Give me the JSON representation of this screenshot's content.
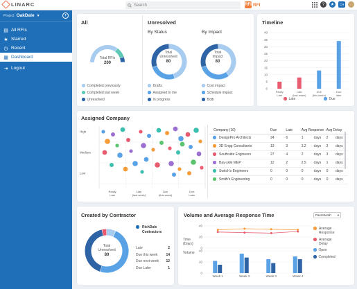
{
  "app": {
    "brand": "LINARC",
    "search_placeholder": "Search",
    "module_label": "RFI",
    "module_badge": "RFI",
    "grid_icon": "grid-icon",
    "help_label": "?",
    "avatar_text": "CH"
  },
  "sidebar": {
    "project_label": "Project",
    "project_name": "OakDale",
    "items": [
      {
        "label": "All RFIs",
        "icon": "inbox-icon",
        "glyph": "▤"
      },
      {
        "label": "Starred",
        "icon": "star-icon",
        "glyph": "★"
      },
      {
        "label": "Recent",
        "icon": "clock-icon",
        "glyph": "◷"
      },
      {
        "label": "Dashboard",
        "icon": "dashboard-icon",
        "glyph": "▦",
        "active": true
      },
      {
        "label": "Logout",
        "icon": "logout-icon",
        "glyph": "⇥"
      }
    ]
  },
  "colors": {
    "accent": "#1f6fb8",
    "light_blue": "#a8ccf0",
    "mid_blue": "#5aa2e6",
    "dark_blue": "#2e63a6",
    "red": "#e85c6f",
    "orange": "#f59c3a",
    "teal": "#3dbfb0",
    "purple": "#9b6fd0",
    "green": "#5cc46f"
  },
  "all_card": {
    "title": "All",
    "total_label": "Total RFIs",
    "total_value": "200",
    "legend": [
      "Completed previously",
      "Completed last week",
      "Unresolved"
    ]
  },
  "unresolved_card": {
    "title": "Unresolved",
    "by_status": {
      "title": "By Status",
      "center_label_1": "Total",
      "center_label_2": "Unresolved",
      "center_value": "80",
      "legend": [
        "Drafts",
        "Assigned to me",
        "In progress"
      ]
    },
    "by_impact": {
      "title": "By Impact",
      "center_label_1": "Total",
      "center_label_2": "Impact",
      "center_value": "80",
      "legend": [
        "Cost impact",
        "Schedule impact",
        "Both"
      ]
    }
  },
  "timeline_card": {
    "title": "Timeline",
    "legend": [
      "Late",
      "Due"
    ]
  },
  "assigned_card": {
    "title": "Assigned Company",
    "y_labels": [
      "High",
      "Medium",
      "Low"
    ],
    "x_labels": [
      [
        "Really",
        "Late"
      ],
      [
        "Late",
        "(last week)"
      ],
      [
        "Due",
        "(this week)"
      ],
      [
        "Due",
        "Later"
      ]
    ],
    "table": {
      "headers": [
        "Company (10)",
        "Due",
        "Late",
        "Avg Response",
        "Avg Delay"
      ],
      "rows": [
        {
          "color": "#5aa2e6",
          "cells": [
            "DesignPro Architects",
            "24",
            "6",
            "1",
            "days",
            "2",
            "days"
          ]
        },
        {
          "color": "#f59c3a",
          "cells": [
            "3D Engg Consultants",
            "13",
            "3",
            "3.2",
            "days",
            "3",
            "days"
          ]
        },
        {
          "color": "#e85c6f",
          "cells": [
            "Southside Engineers",
            "27",
            "4",
            "2",
            "days",
            "3",
            "days"
          ]
        },
        {
          "color": "#9b6fd0",
          "cells": [
            "Bay-side MEP",
            "12",
            "2",
            "2.5",
            "days",
            "1",
            "days"
          ]
        },
        {
          "color": "#3dbfb0",
          "cells": [
            "Switch's Engineers",
            "0",
            "0",
            "0",
            "days",
            "0",
            "days"
          ]
        },
        {
          "color": "#5cc46f",
          "cells": [
            "Smith's Engineering",
            "0",
            "0",
            "0",
            "days",
            "0",
            "days"
          ]
        }
      ]
    }
  },
  "contractor_card": {
    "title": "Created by Contractor",
    "center_label_1": "Total",
    "center_label_2": "Unresolved",
    "center_value": "80",
    "contractor_name": "RichDale Contractors",
    "stats": [
      {
        "label": "Late",
        "value": "2"
      },
      {
        "label": "Due this week",
        "value": "14"
      },
      {
        "label": "Due next week",
        "value": "12"
      },
      {
        "label": "Due Later",
        "value": "1"
      }
    ]
  },
  "volume_card": {
    "title": "Volume and Average Response Time",
    "period_select": "Past Month",
    "y_top_label_1": "Time",
    "y_top_label_2": "(Days)",
    "y_bottom_label": "Volume",
    "y_top_ticks": [
      "40",
      "20",
      "0"
    ],
    "y_bottom_ticks": [
      "40",
      "20",
      "0"
    ],
    "weeks": [
      "Week 1",
      "Week 2",
      "Week 3",
      "Week 4"
    ],
    "legend": [
      "Average Response",
      "Average Delay",
      "Open",
      "Completed"
    ]
  },
  "chart_data": [
    {
      "type": "pie",
      "title": "All",
      "labels": [
        "Completed previously",
        "Completed last week",
        "Unresolved"
      ],
      "values": [
        70,
        20,
        10
      ]
    },
    {
      "type": "pie",
      "title": "By Status",
      "labels": [
        "Drafts",
        "Assigned to me",
        "In progress"
      ],
      "values": [
        45,
        25,
        30
      ]
    },
    {
      "type": "pie",
      "title": "By Impact",
      "labels": [
        "Cost impact",
        "Schedule impact",
        "Both"
      ],
      "values": [
        40,
        30,
        30
      ]
    },
    {
      "type": "bar",
      "title": "Timeline",
      "categories": [
        "Really Late",
        "Late (last week)",
        "Due (this week)",
        "Due later"
      ],
      "series": [
        {
          "name": "Late",
          "values": [
            5,
            8,
            0,
            0
          ]
        },
        {
          "name": "Due",
          "values": [
            0,
            0,
            13,
            34
          ]
        }
      ],
      "ylim": [
        0,
        40
      ],
      "yticks": [
        0,
        5,
        10,
        15,
        20,
        25,
        30,
        35,
        40
      ]
    },
    {
      "type": "pie",
      "title": "Created by Contractor",
      "labels": [
        "Late",
        "Due this week",
        "Due next week",
        "Due Later"
      ],
      "values": [
        2,
        14,
        12,
        1
      ]
    },
    {
      "type": "bar",
      "title": "Volume and Average Response Time",
      "categories": [
        "Week 1",
        "Week 2",
        "Week 3",
        "Week 4"
      ],
      "series": [
        {
          "name": "Open",
          "values": [
            22,
            35,
            25,
            30
          ]
        },
        {
          "name": "Completed",
          "values": [
            15,
            28,
            18,
            25
          ]
        }
      ],
      "lines": [
        {
          "name": "Average Response",
          "values": [
            33,
            35,
            34,
            33
          ]
        },
        {
          "name": "Average Delay",
          "values": [
            29,
            28,
            27,
            30
          ]
        }
      ],
      "ylim": [
        0,
        40
      ]
    }
  ]
}
